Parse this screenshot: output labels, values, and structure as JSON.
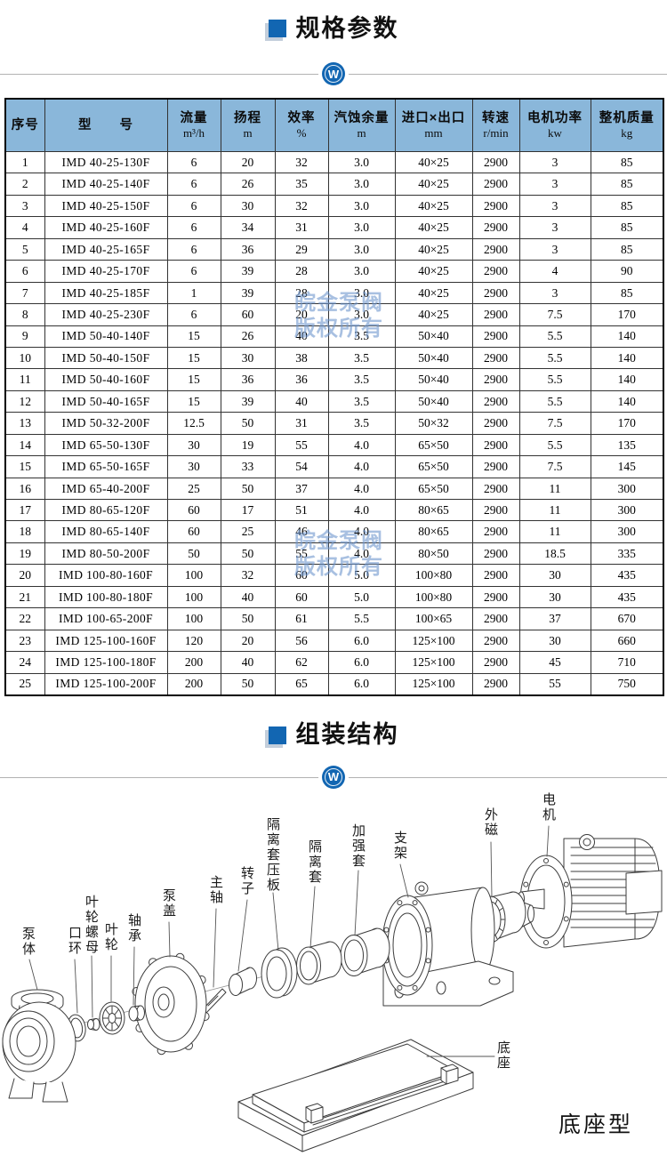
{
  "logo": {
    "letter": "W"
  },
  "colors": {
    "accent_blue": "#1266b2",
    "table_header_bg": "#8ab7da",
    "watermark_blue": "#6e96cd"
  },
  "spec_section": {
    "title": "规格参数",
    "watermark": {
      "line1": "皖金泵阀",
      "line2": "版权所有"
    },
    "table": {
      "headers": [
        {
          "label": "序号",
          "unit": ""
        },
        {
          "label": "型　　号",
          "unit": ""
        },
        {
          "label": "流量",
          "unit": "m³/h"
        },
        {
          "label": "扬程",
          "unit": "m"
        },
        {
          "label": "效率",
          "unit": "%"
        },
        {
          "label": "汽蚀余量",
          "unit": "m"
        },
        {
          "label": "进口×出口",
          "unit": "mm"
        },
        {
          "label": "转速",
          "unit": "r/min"
        },
        {
          "label": "电机功率",
          "unit": "kw"
        },
        {
          "label": "整机质量",
          "unit": "kg"
        }
      ],
      "rows": [
        [
          "1",
          "IMD 40-25-130F",
          "6",
          "20",
          "32",
          "3.0",
          "40×25",
          "2900",
          "3",
          "85"
        ],
        [
          "2",
          "IMD 40-25-140F",
          "6",
          "26",
          "35",
          "3.0",
          "40×25",
          "2900",
          "3",
          "85"
        ],
        [
          "3",
          "IMD 40-25-150F",
          "6",
          "30",
          "32",
          "3.0",
          "40×25",
          "2900",
          "3",
          "85"
        ],
        [
          "4",
          "IMD 40-25-160F",
          "6",
          "34",
          "31",
          "3.0",
          "40×25",
          "2900",
          "3",
          "85"
        ],
        [
          "5",
          "IMD 40-25-165F",
          "6",
          "36",
          "29",
          "3.0",
          "40×25",
          "2900",
          "3",
          "85"
        ],
        [
          "6",
          "IMD 40-25-170F",
          "6",
          "39",
          "28",
          "3.0",
          "40×25",
          "2900",
          "4",
          "90"
        ],
        [
          "7",
          "IMD 40-25-185F",
          "1",
          "39",
          "28",
          "3.0",
          "40×25",
          "2900",
          "3",
          "85"
        ],
        [
          "8",
          "IMD 40-25-230F",
          "6",
          "60",
          "20",
          "3.0",
          "40×25",
          "2900",
          "7.5",
          "170"
        ],
        [
          "9",
          "IMD 50-40-140F",
          "15",
          "26",
          "40",
          "3.5",
          "50×40",
          "2900",
          "5.5",
          "140"
        ],
        [
          "10",
          "IMD 50-40-150F",
          "15",
          "30",
          "38",
          "3.5",
          "50×40",
          "2900",
          "5.5",
          "140"
        ],
        [
          "11",
          "IMD 50-40-160F",
          "15",
          "36",
          "36",
          "3.5",
          "50×40",
          "2900",
          "5.5",
          "140"
        ],
        [
          "12",
          "IMD 50-40-165F",
          "15",
          "39",
          "40",
          "3.5",
          "50×40",
          "2900",
          "5.5",
          "140"
        ],
        [
          "13",
          "IMD 50-32-200F",
          "12.5",
          "50",
          "31",
          "3.5",
          "50×32",
          "2900",
          "7.5",
          "170"
        ],
        [
          "14",
          "IMD 65-50-130F",
          "30",
          "19",
          "55",
          "4.0",
          "65×50",
          "2900",
          "5.5",
          "135"
        ],
        [
          "15",
          "IMD 65-50-165F",
          "30",
          "33",
          "54",
          "4.0",
          "65×50",
          "2900",
          "7.5",
          "145"
        ],
        [
          "16",
          "IMD 65-40-200F",
          "25",
          "50",
          "37",
          "4.0",
          "65×50",
          "2900",
          "11",
          "300"
        ],
        [
          "17",
          "IMD 80-65-120F",
          "60",
          "17",
          "51",
          "4.0",
          "80×65",
          "2900",
          "11",
          "300"
        ],
        [
          "18",
          "IMD 80-65-140F",
          "60",
          "25",
          "46",
          "4.0",
          "80×65",
          "2900",
          "11",
          "300"
        ],
        [
          "19",
          "IMD 80-50-200F",
          "50",
          "50",
          "55",
          "4.0",
          "80×50",
          "2900",
          "18.5",
          "335"
        ],
        [
          "20",
          "IMD 100-80-160F",
          "100",
          "32",
          "60",
          "5.0",
          "100×80",
          "2900",
          "30",
          "435"
        ],
        [
          "21",
          "IMD 100-80-180F",
          "100",
          "40",
          "60",
          "5.0",
          "100×80",
          "2900",
          "30",
          "435"
        ],
        [
          "22",
          "IMD 100-65-200F",
          "100",
          "50",
          "61",
          "5.5",
          "100×65",
          "2900",
          "37",
          "670"
        ],
        [
          "23",
          "IMD 125-100-160F",
          "120",
          "20",
          "56",
          "6.0",
          "125×100",
          "2900",
          "30",
          "660"
        ],
        [
          "24",
          "IMD 125-100-180F",
          "200",
          "40",
          "62",
          "6.0",
          "125×100",
          "2900",
          "45",
          "710"
        ],
        [
          "25",
          "IMD 125-100-200F",
          "200",
          "50",
          "65",
          "6.0",
          "125×100",
          "2900",
          "55",
          "750"
        ]
      ]
    }
  },
  "assembly_section": {
    "title": "组装结构",
    "caption": "底座型",
    "labels": [
      {
        "id": "pump-body",
        "text": "泵体"
      },
      {
        "id": "wear-ring",
        "text": "口环"
      },
      {
        "id": "impeller-nut",
        "text": "叶轮螺母"
      },
      {
        "id": "impeller",
        "text": "叶轮"
      },
      {
        "id": "bearing",
        "text": "轴承"
      },
      {
        "id": "pump-cover",
        "text": "泵盖"
      },
      {
        "id": "main-shaft",
        "text": "主轴"
      },
      {
        "id": "rotor",
        "text": "转子"
      },
      {
        "id": "isolation-sleeve-plate",
        "text": "隔离套压板"
      },
      {
        "id": "isolation-sleeve",
        "text": "隔离套"
      },
      {
        "id": "reinforcement-sleeve",
        "text": "加强套"
      },
      {
        "id": "bracket",
        "text": "支架"
      },
      {
        "id": "outer-magnet",
        "text": "外磁"
      },
      {
        "id": "motor",
        "text": "电机"
      },
      {
        "id": "base",
        "text": "底座"
      }
    ]
  }
}
